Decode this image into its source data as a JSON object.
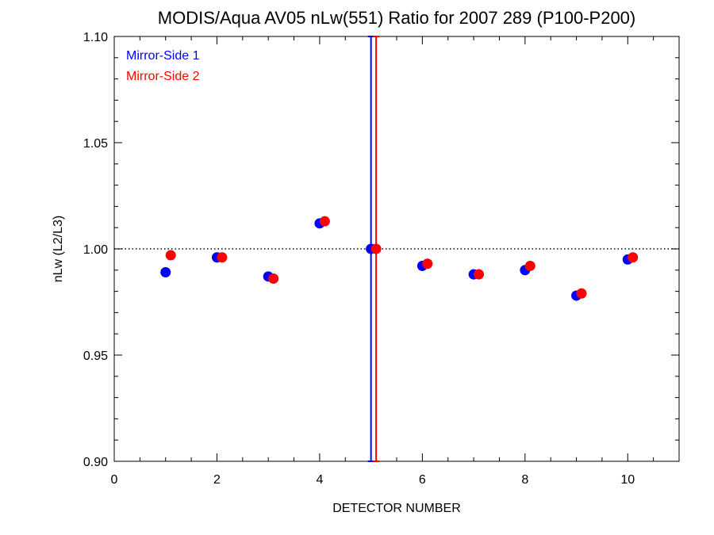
{
  "chart_data": {
    "type": "scatter",
    "title": "MODIS/Aqua AV05 nLw(551) Ratio for 2007 289 (P100-P200)",
    "xlabel": "DETECTOR NUMBER",
    "ylabel": "nLw (L2/L3)",
    "xlim": [
      0,
      11
    ],
    "ylim": [
      0.9,
      1.1
    ],
    "x_ticks": [
      0,
      2,
      4,
      6,
      8,
      10
    ],
    "x_tick_labels": [
      "0",
      "2",
      "4",
      "6",
      "8",
      "10"
    ],
    "y_ticks": [
      0.9,
      0.95,
      1.0,
      1.05,
      1.1
    ],
    "y_tick_labels": [
      "0.90",
      "0.95",
      "1.00",
      "1.05",
      "1.10"
    ],
    "reference_line": {
      "y": 1.0,
      "style": "dotted"
    },
    "legend_position": "top-left",
    "grid": false,
    "series": [
      {
        "name": "Mirror-Side 1",
        "color": "#0000ff",
        "x": [
          1,
          2,
          3,
          4,
          5,
          6,
          7,
          8,
          9,
          10
        ],
        "y": [
          0.989,
          0.996,
          0.987,
          1.012,
          1.0,
          0.992,
          0.988,
          0.99,
          0.978,
          0.995
        ],
        "error_bar": {
          "x": 5,
          "low": 0.9,
          "high": 1.1
        }
      },
      {
        "name": "Mirror-Side 2",
        "color": "#ff0000",
        "x": [
          1.1,
          2.1,
          3.1,
          4.1,
          5.1,
          6.1,
          7.1,
          8.1,
          9.1,
          10.1
        ],
        "y": [
          0.997,
          0.996,
          0.986,
          1.013,
          1.0,
          0.993,
          0.988,
          0.992,
          0.979,
          0.996
        ],
        "error_bar": {
          "x": 5.1,
          "low": 0.9,
          "high": 1.1
        }
      }
    ]
  }
}
